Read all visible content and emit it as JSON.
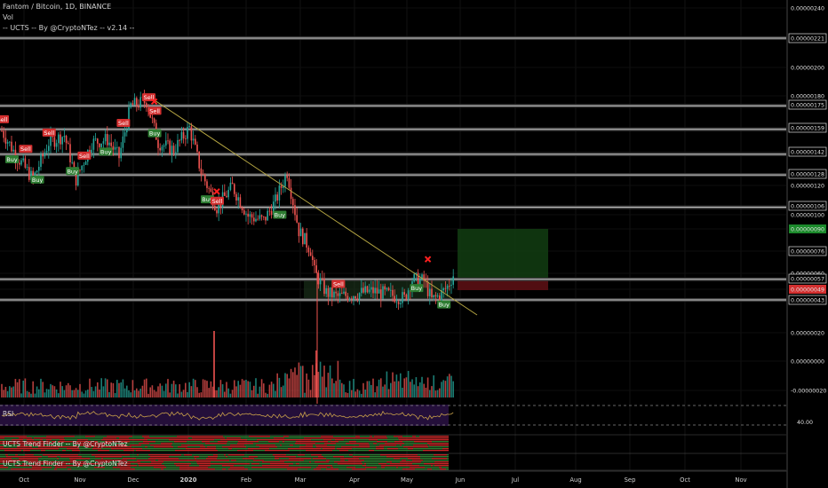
{
  "header": {
    "symbol_line": "Fantom / Bitcoin, 1D, BINANCE",
    "volume_label": "Vol",
    "indicator_line": "-- UCTS -- By @CryptoNTez -- v2.14 --"
  },
  "panes": {
    "rsi_label": "RSI",
    "rsi_value": "40.00",
    "trend1_label": "UCTS Trend Finder -- By @CryptoNTez",
    "trend2_label": "UCTS Trend Finder -- By @CryptoNTez"
  },
  "colors": {
    "up": "#26a69a",
    "down": "#ef5350",
    "sell_badge": "#d32f2f",
    "buy_badge": "#2e7d32",
    "trendline": "#b5a642",
    "rsi_bg": "#240f3a",
    "rsi_line": "#c8a04a",
    "target_zone": "#123d12",
    "stop_zone": "#5a0f14"
  },
  "chart_data": {
    "type": "candlestick",
    "x_axis_labels": [
      "Oct",
      "Nov",
      "Dec",
      "2020",
      "Feb",
      "Mar",
      "Apr",
      "May",
      "Jun",
      "Jul",
      "Aug",
      "Sep",
      "Oct",
      "Nov"
    ],
    "price_axis_labels": [
      "0.00000240",
      "0.00000221",
      "0.00000200",
      "0.00000180",
      "0.00000175",
      "0.00000159",
      "0.00000142",
      "0.00000128",
      "0.00000120",
      "0.00000106",
      "0.00000100",
      "0.00000090",
      "0.00000076",
      "0.00000060",
      "0.00000057",
      "0.00000049",
      "0.00000043",
      "0.00000020",
      "0.00000000",
      "-0.00000020"
    ],
    "highlighted_price_labels": [
      {
        "text": "0.00000221",
        "style": "level"
      },
      {
        "text": "0.00000175",
        "style": "level"
      },
      {
        "text": "0.00000159",
        "style": "level"
      },
      {
        "text": "0.00000142",
        "style": "level"
      },
      {
        "text": "0.00000128",
        "style": "level"
      },
      {
        "text": "0.00000106",
        "style": "level"
      },
      {
        "text": "0.00000090",
        "style": "green"
      },
      {
        "text": "0.00000076",
        "style": "plain-box"
      },
      {
        "text": "0.00000057",
        "style": "level"
      },
      {
        "text": "0.00000049",
        "style": "red"
      },
      {
        "text": "0.00000043",
        "style": "level"
      }
    ],
    "horizontal_levels": [
      221,
      175,
      159,
      142,
      128,
      106,
      57,
      43
    ],
    "signals": [
      {
        "type": "Sell",
        "day": 0
      },
      {
        "type": "Buy",
        "day": 5
      },
      {
        "type": "Sell",
        "day": 12
      },
      {
        "type": "Buy",
        "day": 18
      },
      {
        "type": "Sell",
        "day": 24
      },
      {
        "type": "Buy",
        "day": 36
      },
      {
        "type": "Sell",
        "day": 42
      },
      {
        "type": "Buy",
        "day": 53
      },
      {
        "type": "Sell",
        "day": 62
      },
      {
        "type": "Sell",
        "day": 75
      },
      {
        "type": "Buy",
        "day": 78
      },
      {
        "type": "Sell",
        "day": 78
      },
      {
        "type": "Buy",
        "day": 105
      },
      {
        "type": "Sell",
        "day": 110
      },
      {
        "type": "Buy",
        "day": 142
      },
      {
        "type": "Sell",
        "day": 172
      },
      {
        "type": "Buy",
        "day": 212
      },
      {
        "type": "Buy",
        "day": 226
      }
    ],
    "x_marks_days": [
      78,
      110,
      218
    ],
    "rsi_level": 40
  }
}
